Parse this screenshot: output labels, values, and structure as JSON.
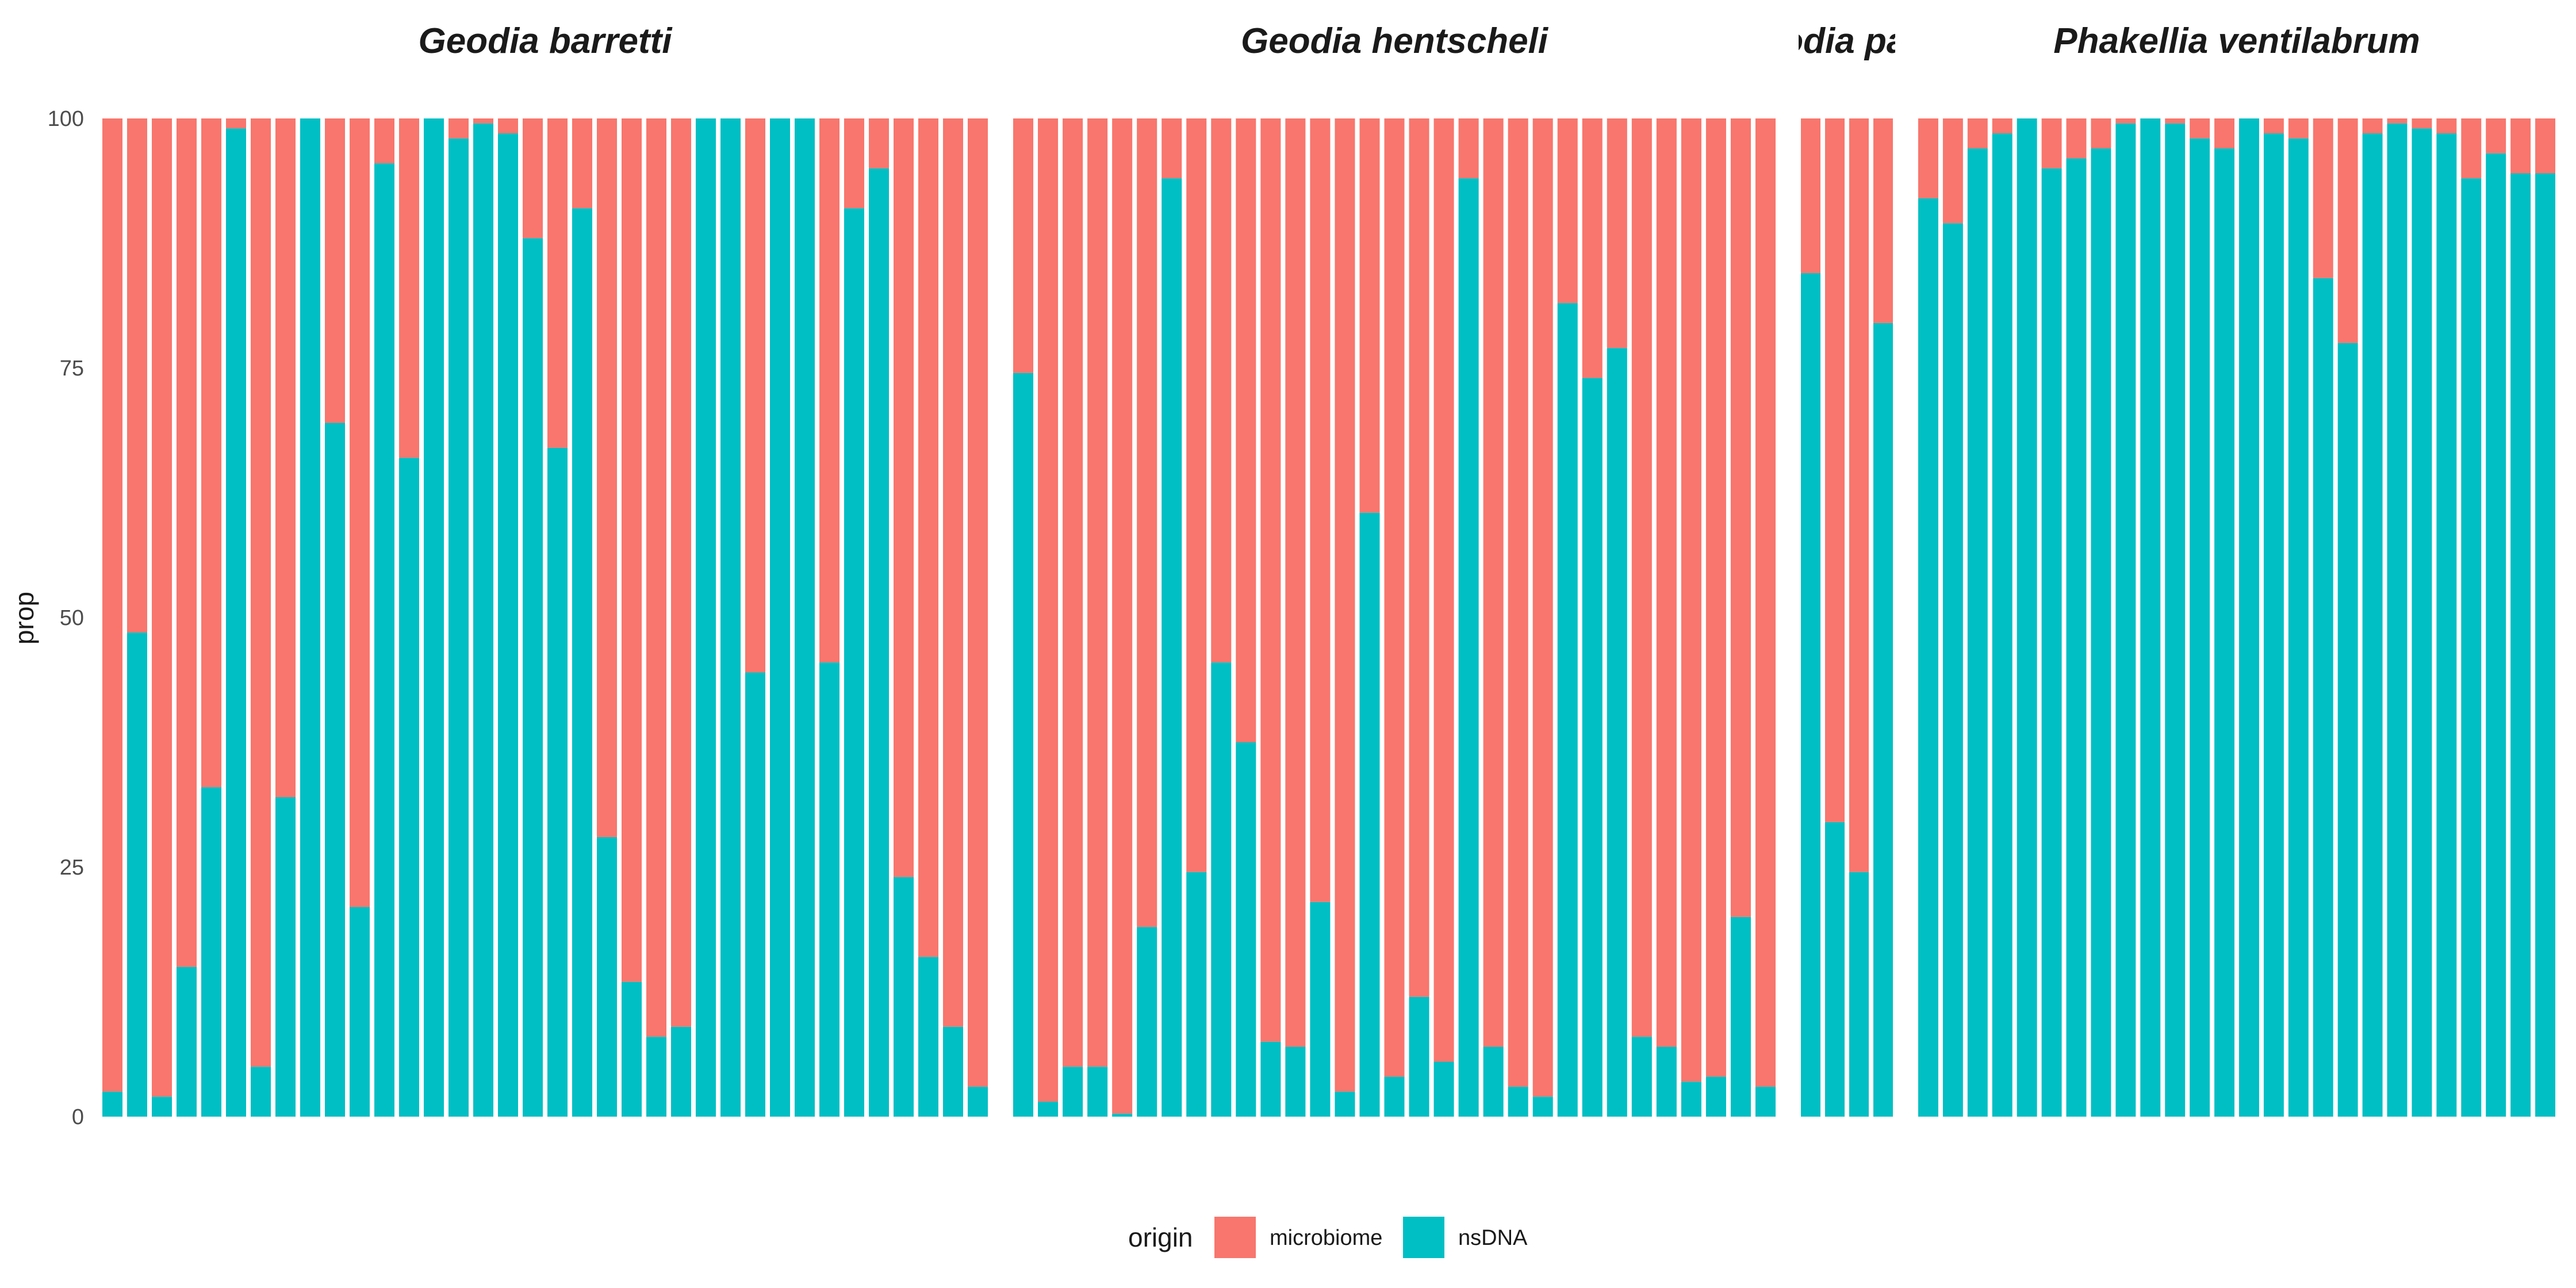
{
  "chart_data": {
    "type": "bar",
    "stacked": true,
    "ylabel": "prop",
    "xlabel": "",
    "ylim": [
      0,
      100
    ],
    "yticks": [
      0,
      25,
      50,
      75,
      100
    ],
    "grid": false,
    "legend": {
      "title": "origin",
      "position": "bottom",
      "entries": [
        {
          "name": "microbiome",
          "color": "#F8766D"
        },
        {
          "name": "nsDNA",
          "color": "#00BFC4"
        }
      ]
    },
    "series_colors": {
      "microbiome": "#F8766D",
      "nsDNA": "#00BFC4"
    },
    "facets": [
      {
        "title": "Geodia barretti",
        "nsDNA": [
          2.5,
          48.5,
          2,
          15,
          33,
          99,
          5,
          32,
          100,
          69.5,
          21,
          95.5,
          66,
          100,
          98,
          99.5,
          98.5,
          88,
          67,
          91,
          28,
          13.5,
          8,
          9,
          100,
          100,
          44.5,
          100,
          100,
          45.5,
          91,
          95,
          24,
          16,
          9,
          3
        ]
      },
      {
        "title": "Geodia hentscheli",
        "nsDNA": [
          74.5,
          1.5,
          5,
          5,
          0.3,
          19,
          94,
          24.5,
          45.5,
          37.5,
          7.5,
          7,
          21.5,
          2.5,
          60.5,
          4,
          12,
          5.5,
          94,
          7,
          3,
          2,
          81.5,
          74,
          77,
          8,
          7,
          3.5,
          4,
          20,
          3
        ]
      },
      {
        "title": "Geodia parva",
        "nsDNA": [
          84.5,
          29.5,
          24.5,
          79.5
        ]
      },
      {
        "title": "Phakellia ventilabrum",
        "nsDNA": [
          92,
          89.5,
          97,
          98.5,
          100,
          95,
          96,
          97,
          99.5,
          100,
          99.5,
          98,
          97,
          100,
          98.5,
          98,
          84,
          77.5,
          98.5,
          99.5,
          99,
          98.5,
          94,
          96.5,
          94.5,
          94.5
        ]
      }
    ]
  }
}
